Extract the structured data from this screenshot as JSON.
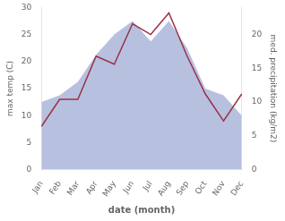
{
  "chart_data": {
    "type": "line",
    "xlabel": "date (month)",
    "ylabel": "max temp (C)",
    "y2label": "med. precipitation (kg/m2)",
    "categories": [
      "Jan",
      "Feb",
      "Mar",
      "Apr",
      "May",
      "Jun",
      "Jul",
      "Aug",
      "Sep",
      "Oct",
      "Nov",
      "Dec"
    ],
    "series": [
      {
        "type": "area",
        "axis": "y2",
        "color": "#b8c0e0",
        "values": [
          10,
          11,
          13,
          17,
          20,
          22,
          19,
          22,
          18,
          12,
          11,
          8
        ]
      },
      {
        "type": "line",
        "color": "#993344",
        "values": [
          8.0,
          13.0,
          13.0,
          21.0,
          19.5,
          27.0,
          25.0,
          29.0,
          21.0,
          14.0,
          9.0,
          14.0
        ]
      }
    ],
    "ylim": [
      0,
      30
    ],
    "yticks": [
      0,
      5,
      10,
      15,
      20,
      25,
      30
    ],
    "y2lim": [
      0,
      24
    ],
    "y2ticks": [
      0,
      5,
      10,
      15,
      20
    ],
    "grid": false
  }
}
